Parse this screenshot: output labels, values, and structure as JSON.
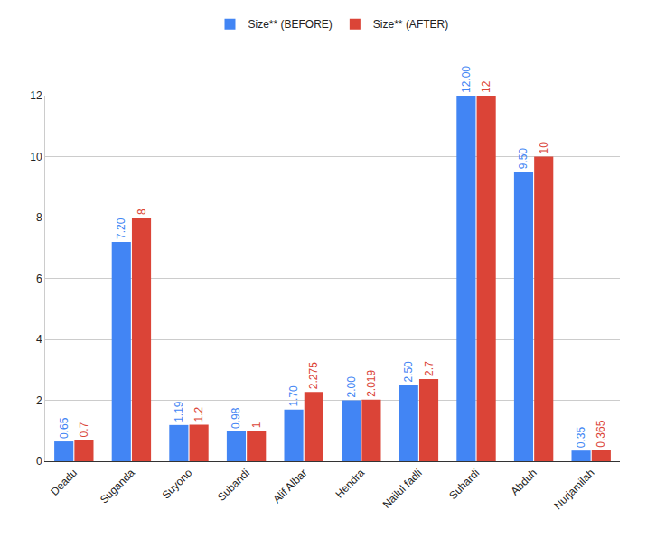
{
  "chart_data": {
    "type": "bar",
    "categories": [
      "Deadu",
      "Suganda",
      "Suyono",
      "Subandi",
      "Alif Albar",
      "Hendra",
      "Nailul fadli",
      "Suhardi",
      "Abduh",
      "Nurjamilah"
    ],
    "series": [
      {
        "name": "Size** (BEFORE)",
        "color": "#4285f4",
        "values": [
          0.65,
          7.2,
          1.19,
          0.98,
          1.7,
          2.0,
          2.5,
          12.0,
          9.5,
          0.35
        ],
        "value_labels": [
          "0.65",
          "7.20",
          "1.19",
          "0.98",
          "1.70",
          "2.00",
          "2.50",
          "12.00",
          "9.50",
          "0.35"
        ]
      },
      {
        "name": "Size** (AFTER)",
        "color": "#db4437",
        "values": [
          0.7,
          8,
          1.2,
          1,
          2.275,
          2.019,
          2.7,
          12,
          10,
          0.365
        ]
      }
    ],
    "ylim": [
      0,
      12
    ],
    "yticks": [
      0,
      2,
      4,
      6,
      8,
      10,
      12
    ],
    "grid": true,
    "legend": "top",
    "data_labels": true
  }
}
